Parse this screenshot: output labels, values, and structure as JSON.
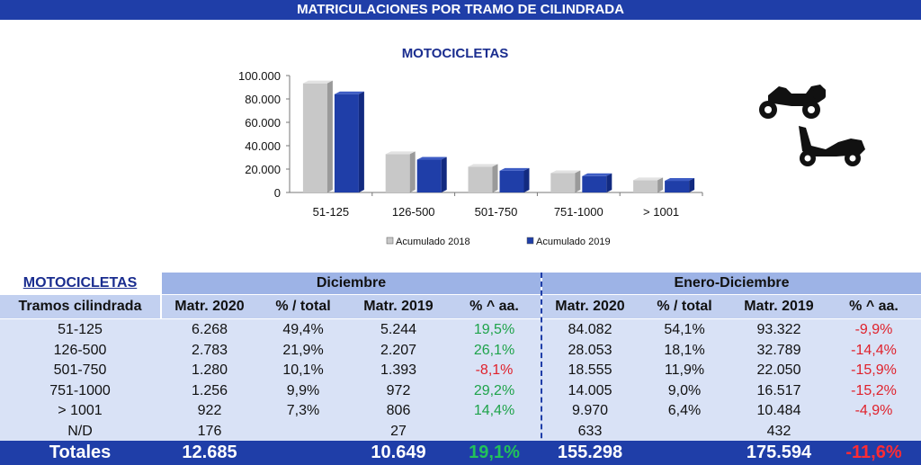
{
  "banner": "MATRICULACIONES POR TRAMO DE CILINDRADA",
  "chart_data": {
    "type": "bar",
    "title": "MOTOCICLETAS",
    "categories": [
      "51-125",
      "126-500",
      "501-750",
      "751-1000",
      "> 1001"
    ],
    "series": [
      {
        "name": "Acumulado 2018",
        "values": [
          93322,
          32789,
          22050,
          16517,
          10484
        ],
        "color": "#c8c8c8"
      },
      {
        "name": "Acumulado 2019",
        "values": [
          84082,
          28053,
          18555,
          14005,
          9970
        ],
        "color": "#1f3ea8"
      }
    ],
    "yticks": [
      "100.000",
      "80.000",
      "60.000",
      "40.000",
      "20.000",
      "0"
    ],
    "ylim": [
      0,
      100000
    ],
    "legend_position": "bottom"
  },
  "table": {
    "section_label": "MOTOCICLETAS",
    "first_col_header": "Tramos cilindrada",
    "group1": "Diciembre",
    "group2": "Enero-Diciembre",
    "col_headers": [
      "Matr. 2020",
      "% / total",
      "Matr. 2019",
      "% ^ aa.",
      "Matr. 2020",
      "% / total",
      "Matr. 2019",
      "% ^ aa."
    ],
    "rows": [
      {
        "label": "51-125",
        "v": [
          "6.268",
          "49,4%",
          "5.244",
          "19,5%",
          "84.082",
          "54,1%",
          "93.322",
          "-9,9%"
        ],
        "c1": "green",
        "c2": "red"
      },
      {
        "label": "126-500",
        "v": [
          "2.783",
          "21,9%",
          "2.207",
          "26,1%",
          "28.053",
          "18,1%",
          "32.789",
          "-14,4%"
        ],
        "c1": "green",
        "c2": "red"
      },
      {
        "label": "501-750",
        "v": [
          "1.280",
          "10,1%",
          "1.393",
          "-8,1%",
          "18.555",
          "11,9%",
          "22.050",
          "-15,9%"
        ],
        "c1": "red",
        "c2": "red"
      },
      {
        "label": "751-1000",
        "v": [
          "1.256",
          "9,9%",
          "972",
          "29,2%",
          "14.005",
          "9,0%",
          "16.517",
          "-15,2%"
        ],
        "c1": "green",
        "c2": "red"
      },
      {
        "label": "> 1001",
        "v": [
          "922",
          "7,3%",
          "806",
          "14,4%",
          "9.970",
          "6,4%",
          "10.484",
          "-4,9%"
        ],
        "c1": "green",
        "c2": "red"
      },
      {
        "label": "N/D",
        "v": [
          "176",
          "",
          "27",
          "",
          "633",
          "",
          "432",
          ""
        ],
        "c1": "green",
        "c2": "red"
      }
    ],
    "totals": {
      "label": "Totales",
      "v": [
        "12.685",
        "",
        "10.649",
        "19,1%",
        "155.298",
        "",
        "175.594",
        "-11,6%"
      ]
    }
  }
}
